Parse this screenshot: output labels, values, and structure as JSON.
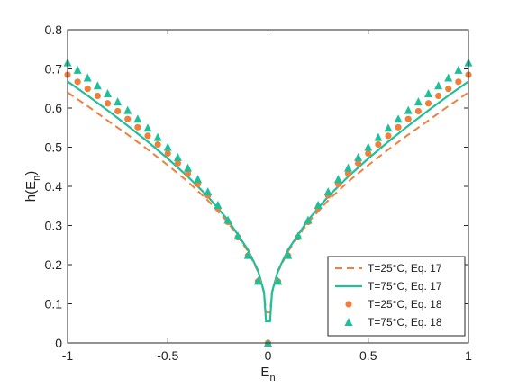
{
  "chart_data": {
    "type": "scatter",
    "xlabel": "E",
    "xlabel_sub": "n",
    "ylabel": "h(E",
    "ylabel_sub": "n",
    "ylabel_close": ")",
    "xlim": [
      -1,
      1
    ],
    "ylim": [
      0,
      0.8
    ],
    "xticks": [
      -1,
      -0.5,
      0,
      0.5,
      1
    ],
    "xtick_labels": [
      "-1",
      "-0.5",
      "0",
      "0.5",
      "1"
    ],
    "yticks": [
      0,
      0.1,
      0.2,
      0.3,
      0.4,
      0.5,
      0.6,
      0.7,
      0.8
    ],
    "ytick_labels": [
      "0",
      "0.1",
      "0.2",
      "0.3",
      "0.4",
      "0.5",
      "0.6",
      "0.7",
      "0.8"
    ],
    "grid": false,
    "legend_position": "bottom-right",
    "series": [
      {
        "name": "T=25°C, Eq. 17",
        "style": "dashed-line",
        "color": "#f07f3c",
        "x": [
          -1,
          -0.9,
          -0.8,
          -0.7,
          -0.6,
          -0.5,
          -0.4,
          -0.3,
          -0.2,
          -0.1,
          -0.05,
          -0.02,
          -0.01,
          0.01,
          0.02,
          0.05,
          0.1,
          0.2,
          0.3,
          0.4,
          0.5,
          0.6,
          0.7,
          0.8,
          0.9,
          1
        ],
        "y": [
          0.64,
          0.605,
          0.568,
          0.532,
          0.494,
          0.454,
          0.412,
          0.364,
          0.308,
          0.234,
          0.182,
          0.128,
          0.078,
          0.078,
          0.128,
          0.182,
          0.234,
          0.308,
          0.364,
          0.412,
          0.454,
          0.494,
          0.532,
          0.568,
          0.605,
          0.64
        ]
      },
      {
        "name": "T=75°C, Eq. 17",
        "style": "solid-line",
        "color": "#1fbf9a",
        "x": [
          -1,
          -0.9,
          -0.8,
          -0.7,
          -0.6,
          -0.5,
          -0.4,
          -0.3,
          -0.2,
          -0.1,
          -0.05,
          -0.02,
          -0.01,
          0.01,
          0.02,
          0.05,
          0.1,
          0.2,
          0.3,
          0.4,
          0.5,
          0.6,
          0.7,
          0.8,
          0.9,
          1
        ],
        "y": [
          0.668,
          0.632,
          0.594,
          0.555,
          0.514,
          0.471,
          0.425,
          0.374,
          0.314,
          0.238,
          0.185,
          0.13,
          0.055,
          0.055,
          0.13,
          0.185,
          0.238,
          0.314,
          0.374,
          0.425,
          0.471,
          0.514,
          0.555,
          0.594,
          0.632,
          0.668
        ]
      },
      {
        "name": "T=25°C, Eq. 18",
        "style": "circle-marker",
        "color": "#f07f3c",
        "x": [
          -1,
          -0.95,
          -0.9,
          -0.85,
          -0.8,
          -0.75,
          -0.7,
          -0.65,
          -0.6,
          -0.55,
          -0.5,
          -0.45,
          -0.4,
          -0.35,
          -0.3,
          -0.25,
          -0.2,
          -0.15,
          -0.1,
          -0.05,
          0,
          0.05,
          0.1,
          0.15,
          0.2,
          0.25,
          0.3,
          0.35,
          0.4,
          0.45,
          0.5,
          0.55,
          0.6,
          0.65,
          0.7,
          0.75,
          0.8,
          0.85,
          0.9,
          0.95,
          1
        ],
        "y": [
          0.685,
          0.667,
          0.649,
          0.631,
          0.612,
          0.592,
          0.572,
          0.551,
          0.529,
          0.507,
          0.484,
          0.459,
          0.433,
          0.406,
          0.377,
          0.344,
          0.309,
          0.27,
          0.223,
          0.157,
          0,
          0.157,
          0.223,
          0.27,
          0.309,
          0.344,
          0.377,
          0.406,
          0.433,
          0.459,
          0.484,
          0.507,
          0.529,
          0.551,
          0.572,
          0.592,
          0.612,
          0.631,
          0.649,
          0.667,
          0.685
        ]
      },
      {
        "name": "T=75°C, Eq. 18",
        "style": "triangle-marker",
        "color": "#1fbf9a",
        "x": [
          -1,
          -0.95,
          -0.9,
          -0.85,
          -0.8,
          -0.75,
          -0.7,
          -0.65,
          -0.6,
          -0.55,
          -0.5,
          -0.45,
          -0.4,
          -0.35,
          -0.3,
          -0.25,
          -0.2,
          -0.15,
          -0.1,
          -0.05,
          0,
          0.05,
          0.1,
          0.15,
          0.2,
          0.25,
          0.3,
          0.35,
          0.4,
          0.45,
          0.5,
          0.55,
          0.6,
          0.65,
          0.7,
          0.75,
          0.8,
          0.85,
          0.9,
          0.95,
          1
        ],
        "y": [
          0.716,
          0.697,
          0.677,
          0.657,
          0.637,
          0.616,
          0.594,
          0.572,
          0.549,
          0.525,
          0.5,
          0.474,
          0.447,
          0.418,
          0.386,
          0.352,
          0.314,
          0.273,
          0.224,
          0.158,
          0,
          0.158,
          0.224,
          0.273,
          0.314,
          0.352,
          0.386,
          0.418,
          0.447,
          0.474,
          0.5,
          0.525,
          0.549,
          0.572,
          0.594,
          0.616,
          0.637,
          0.657,
          0.677,
          0.697,
          0.716
        ]
      }
    ]
  }
}
